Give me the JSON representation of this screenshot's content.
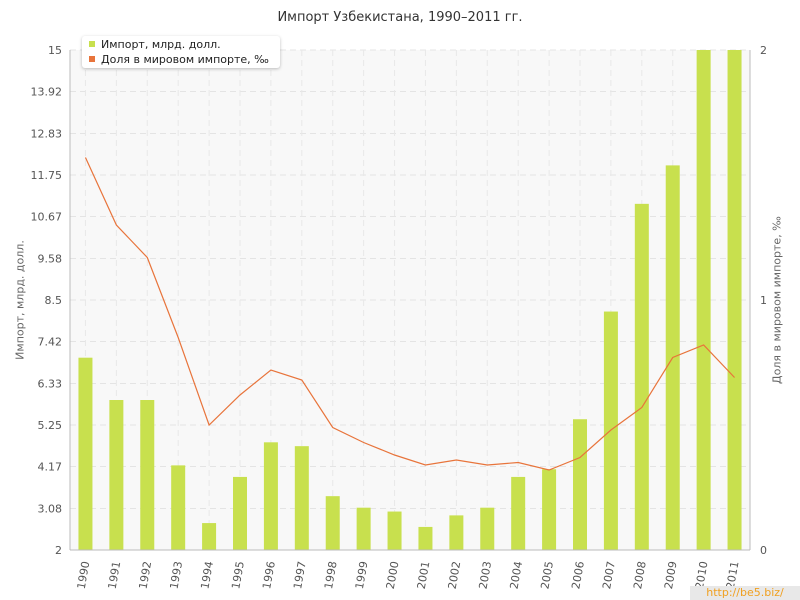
{
  "chart_data": {
    "type": "bar",
    "title": "Импорт Узбекистана, 1990–2011 гг.",
    "xlabel": "",
    "ylabel": "Импорт, млрд. долл.",
    "ylabel_right": "Доля в мировом импорте, ‰",
    "categories": [
      "1990",
      "1991",
      "1992",
      "1993",
      "1994",
      "1995",
      "1996",
      "1997",
      "1998",
      "1999",
      "2000",
      "2001",
      "2002",
      "2003",
      "2004",
      "2005",
      "2006",
      "2007",
      "2008",
      "2009",
      "2010",
      "2011"
    ],
    "ylim": [
      2,
      15
    ],
    "ylim_right": [
      0,
      2
    ],
    "y_ticks": [
      "2",
      "3.08",
      "4.17",
      "5.25",
      "6.33",
      "7.42",
      "8.5",
      "9.58",
      "10.67",
      "11.75",
      "12.83",
      "13.92",
      "15"
    ],
    "y_ticks_right": [
      "0",
      "1",
      "2"
    ],
    "grid": true,
    "legend_position": "top-left",
    "series": [
      {
        "name": "Импорт, млрд. долл.",
        "type": "bar",
        "axis": "left",
        "color": "#c8e04e",
        "values": [
          7.0,
          5.9,
          5.9,
          4.2,
          2.7,
          3.9,
          4.8,
          4.7,
          3.4,
          3.1,
          3.0,
          2.6,
          2.9,
          3.1,
          3.9,
          4.1,
          5.4,
          8.2,
          11.0,
          12.0,
          15.0,
          15.0
        ]
      },
      {
        "name": "Доля в мировом импорте, ‰",
        "type": "line",
        "axis": "right",
        "color": "#e8743b",
        "values": [
          1.57,
          1.3,
          1.17,
          0.85,
          0.5,
          0.62,
          0.72,
          0.68,
          0.49,
          0.43,
          0.38,
          0.34,
          0.36,
          0.34,
          0.35,
          0.32,
          0.37,
          0.48,
          0.57,
          0.77,
          0.82,
          0.69
        ]
      }
    ]
  },
  "watermark": "http://be5.biz/"
}
